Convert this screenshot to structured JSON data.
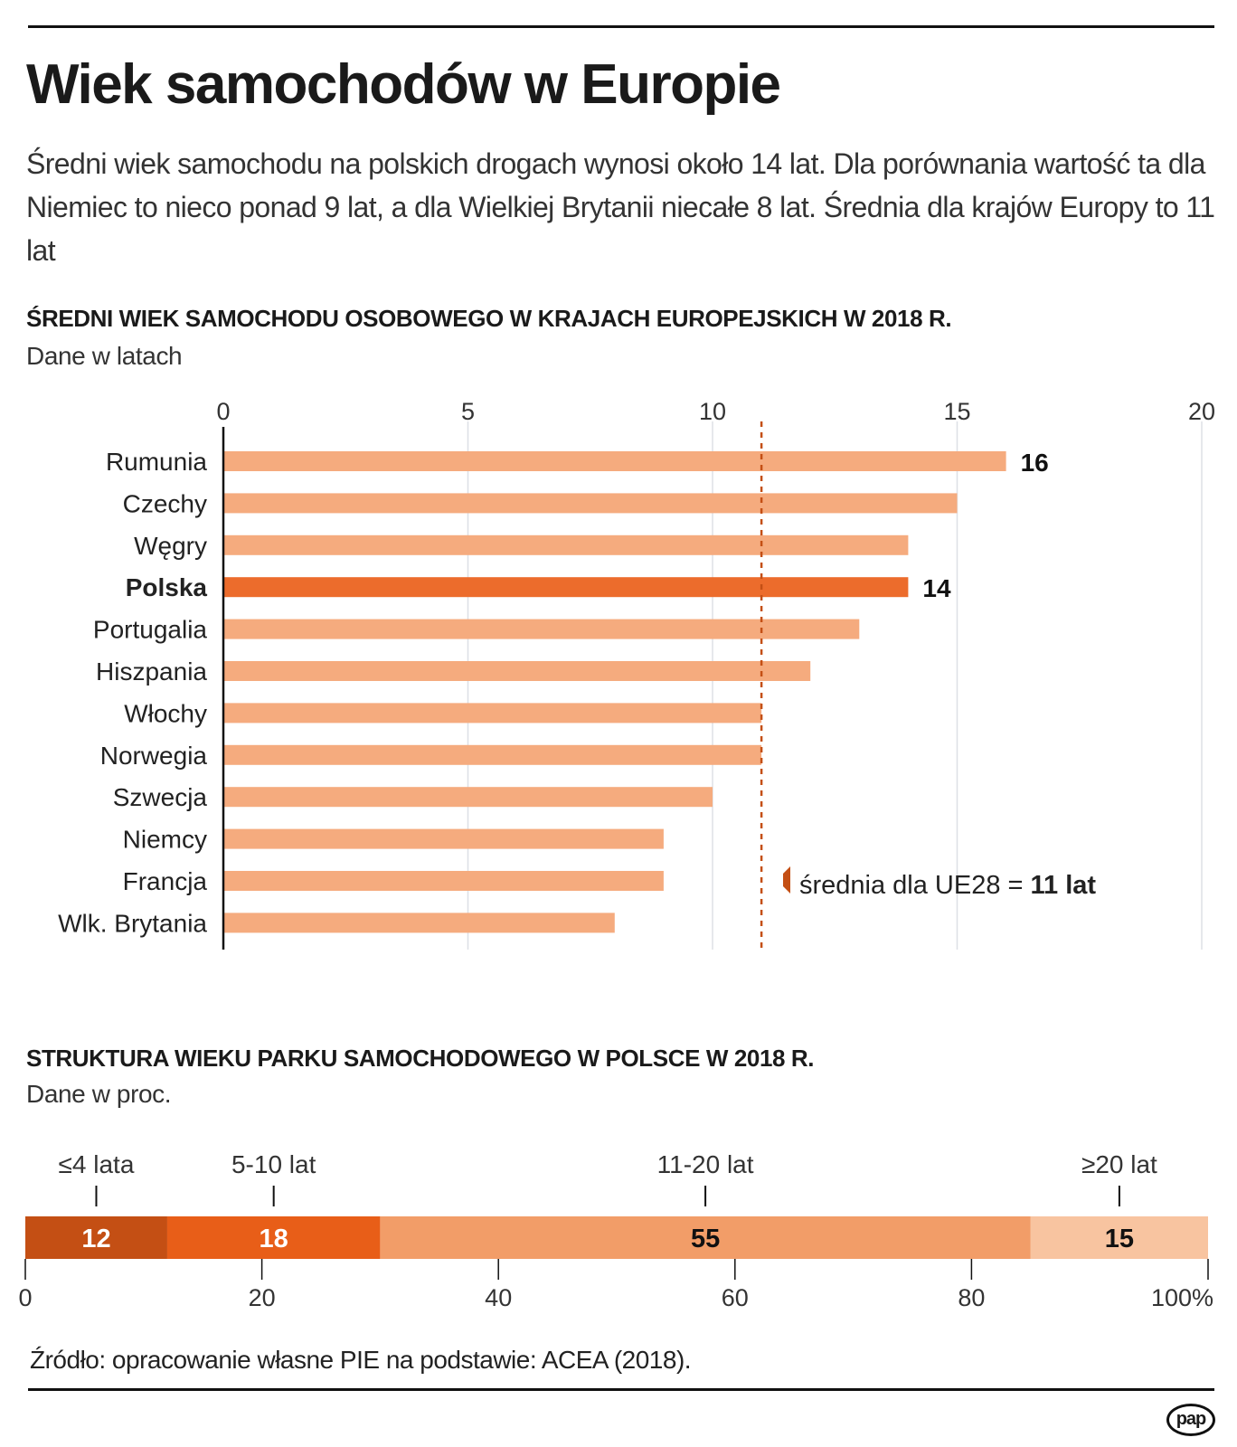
{
  "title": "Wiek samochodów w Europie",
  "subtitle": "Średni wiek samochodu na polskich drogach wynosi około 14 lat. Dla porównania wartość ta dla Niemiec to nieco ponad 9 lat, a dla Wielkiej Brytanii niecałe 8 lat. Średnia dla krajów Europy to 11 lat",
  "source": "Źródło: opracowanie własne PIE na podstawie: ACEA (2018).",
  "logo": "pap",
  "chart_data": [
    {
      "type": "bar",
      "orientation": "horizontal",
      "title": "ŚREDNI WIEK SAMOCHODU OSOBOWEGO W KRAJACH EUROPEJSKICH W 2018 R.",
      "subtitle": "Dane w latach",
      "categories": [
        "Rumunia",
        "Czechy",
        "Węgry",
        "Polska",
        "Portugalia",
        "Hiszpania",
        "Włochy",
        "Norwegia",
        "Szwecja",
        "Niemcy",
        "Francja",
        "Wlk. Brytania"
      ],
      "values": [
        16,
        15,
        14,
        14,
        13,
        12,
        11,
        11,
        10,
        9,
        9,
        8
      ],
      "highlight": "Polska",
      "data_labels": {
        "Rumunia": "16",
        "Polska": "14"
      },
      "xlim": [
        0,
        20
      ],
      "xticks": [
        "0",
        "5",
        "10",
        "15",
        "20"
      ],
      "grid": true,
      "reference_line": {
        "value": 11,
        "label_prefix": "średnia dla UE28 = ",
        "label_value": "11 lat"
      },
      "colors": {
        "bar": "#f5ab7e",
        "highlight": "#ec6c2c",
        "reference": "#c44f14"
      }
    },
    {
      "type": "bar",
      "stacked": true,
      "orientation": "horizontal",
      "title": "STRUKTURA WIEKU PARKU SAMOCHODOWEGO W POLSCE W 2018 R.",
      "subtitle": "Dane w proc.",
      "categories": [
        "≤4 lata",
        "5-10 lat",
        "11-20 lat",
        "≥20 lat"
      ],
      "values": [
        12,
        18,
        55,
        15
      ],
      "colors": [
        "#c44f14",
        "#e85e18",
        "#f29d68",
        "#f8c4a0"
      ],
      "label_colors": [
        "#ffffff",
        "#ffffff",
        "#111111",
        "#111111"
      ],
      "xlim": [
        0,
        100
      ],
      "xticks": [
        "0",
        "20",
        "40",
        "60",
        "80",
        "100%"
      ]
    }
  ]
}
